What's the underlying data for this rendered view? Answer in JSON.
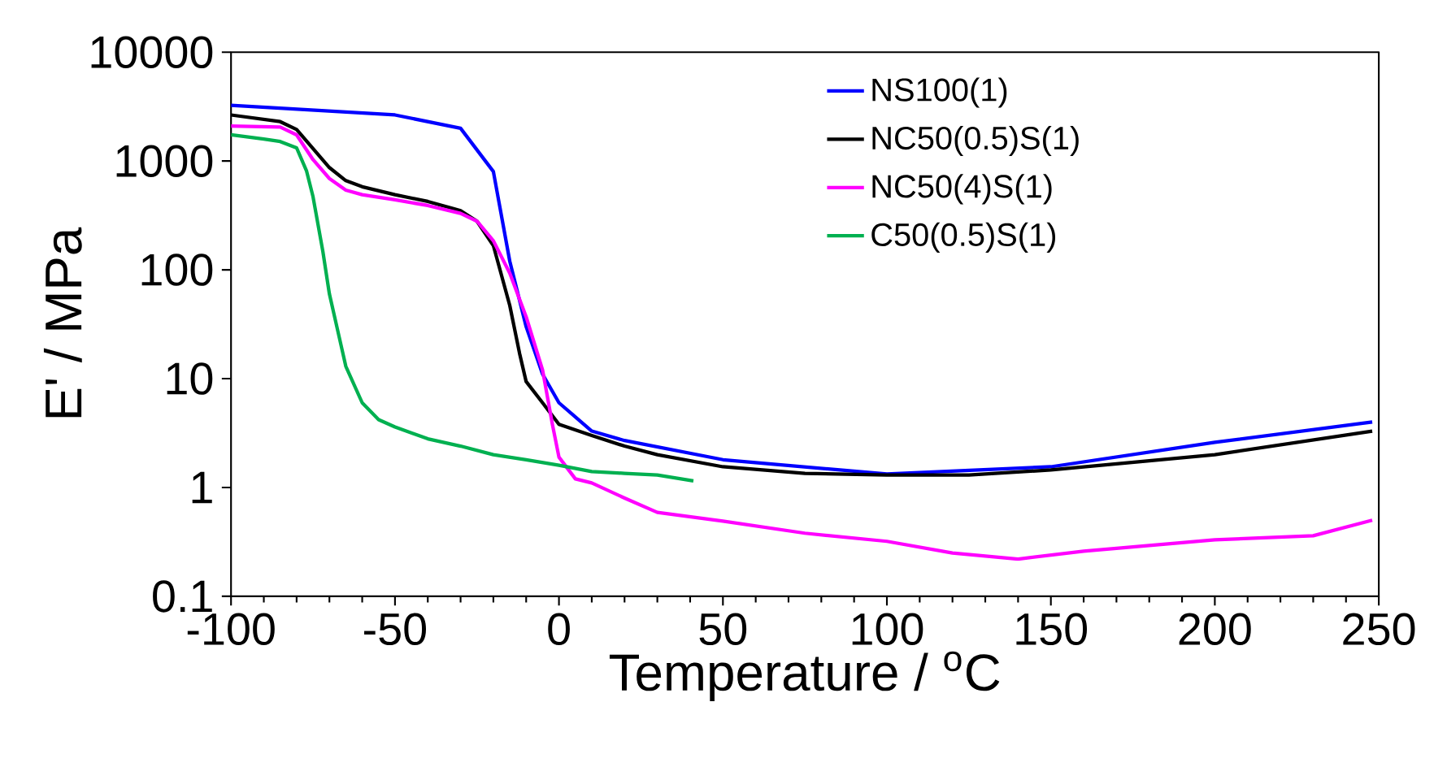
{
  "chart_data": {
    "type": "line",
    "xlabel": "Temperature / $^{o}$C",
    "ylabel": "E' / MPa",
    "log": "y",
    "xlim": [
      -100,
      250
    ],
    "xticks": [
      -100,
      -50,
      0,
      50,
      100,
      150,
      200,
      250
    ],
    "ylim": [
      0.1,
      10000
    ],
    "yticks": [
      0.1,
      1,
      10,
      100,
      1000,
      10000
    ],
    "legend": "top right",
    "grid": false,
    "marker": "none",
    "line_style": "solid",
    "series": [
      {
        "name": "NS100(1)",
        "color": "#0000ff",
        "x": [
          -100,
          -50,
          -30,
          -20,
          -15,
          -10,
          -5,
          0,
          10,
          20,
          50,
          100,
          150,
          200,
          248
        ],
        "values": [
          3250,
          2650,
          2000,
          800,
          120,
          30,
          11,
          6,
          3.3,
          2.7,
          1.8,
          1.33,
          1.55,
          2.6,
          4.0
        ]
      },
      {
        "name": "NC50(0.5)S(1)",
        "color": "#000000",
        "x": [
          -100,
          -85,
          -80,
          -75,
          -70,
          -65,
          -60,
          -50,
          -40,
          -30,
          -25,
          -20,
          -15,
          -12,
          -10,
          -5,
          0,
          10,
          20,
          30,
          50,
          75,
          100,
          125,
          150,
          200,
          248
        ],
        "values": [
          2650,
          2300,
          1950,
          1300,
          870,
          660,
          580,
          490,
          425,
          350,
          280,
          167,
          47,
          17,
          9.4,
          6,
          3.8,
          3.0,
          2.4,
          2.0,
          1.55,
          1.35,
          1.3,
          1.3,
          1.45,
          2.0,
          3.3
        ]
      },
      {
        "name": "NC50(4)S(1)",
        "color": "#ff00ff",
        "x": [
          -100,
          -85,
          -80,
          -75,
          -70,
          -65,
          -60,
          -50,
          -40,
          -30,
          -25,
          -20,
          -15,
          -10,
          -5,
          -2,
          0,
          5,
          10,
          20,
          30,
          50,
          75,
          100,
          120,
          140,
          160,
          200,
          230,
          248
        ],
        "values": [
          2100,
          2050,
          1740,
          1030,
          690,
          540,
          490,
          440,
          390,
          330,
          280,
          185,
          93,
          37,
          12,
          3.8,
          1.9,
          1.2,
          1.1,
          0.8,
          0.59,
          0.49,
          0.38,
          0.32,
          0.25,
          0.22,
          0.26,
          0.33,
          0.36,
          0.5
        ]
      },
      {
        "name": "C50(0.5)S(1)",
        "color": "#00b050",
        "x": [
          -100,
          -90,
          -85,
          -80,
          -77,
          -75,
          -72,
          -70,
          -67,
          -65,
          -60,
          -55,
          -50,
          -40,
          -30,
          -20,
          -10,
          0,
          10,
          20,
          30,
          41
        ],
        "values": [
          1740,
          1590,
          1510,
          1320,
          815,
          470,
          148,
          60,
          24,
          13,
          6,
          4.2,
          3.6,
          2.8,
          2.4,
          2.0,
          1.8,
          1.6,
          1.4,
          1.35,
          1.3,
          1.15
        ]
      }
    ]
  }
}
